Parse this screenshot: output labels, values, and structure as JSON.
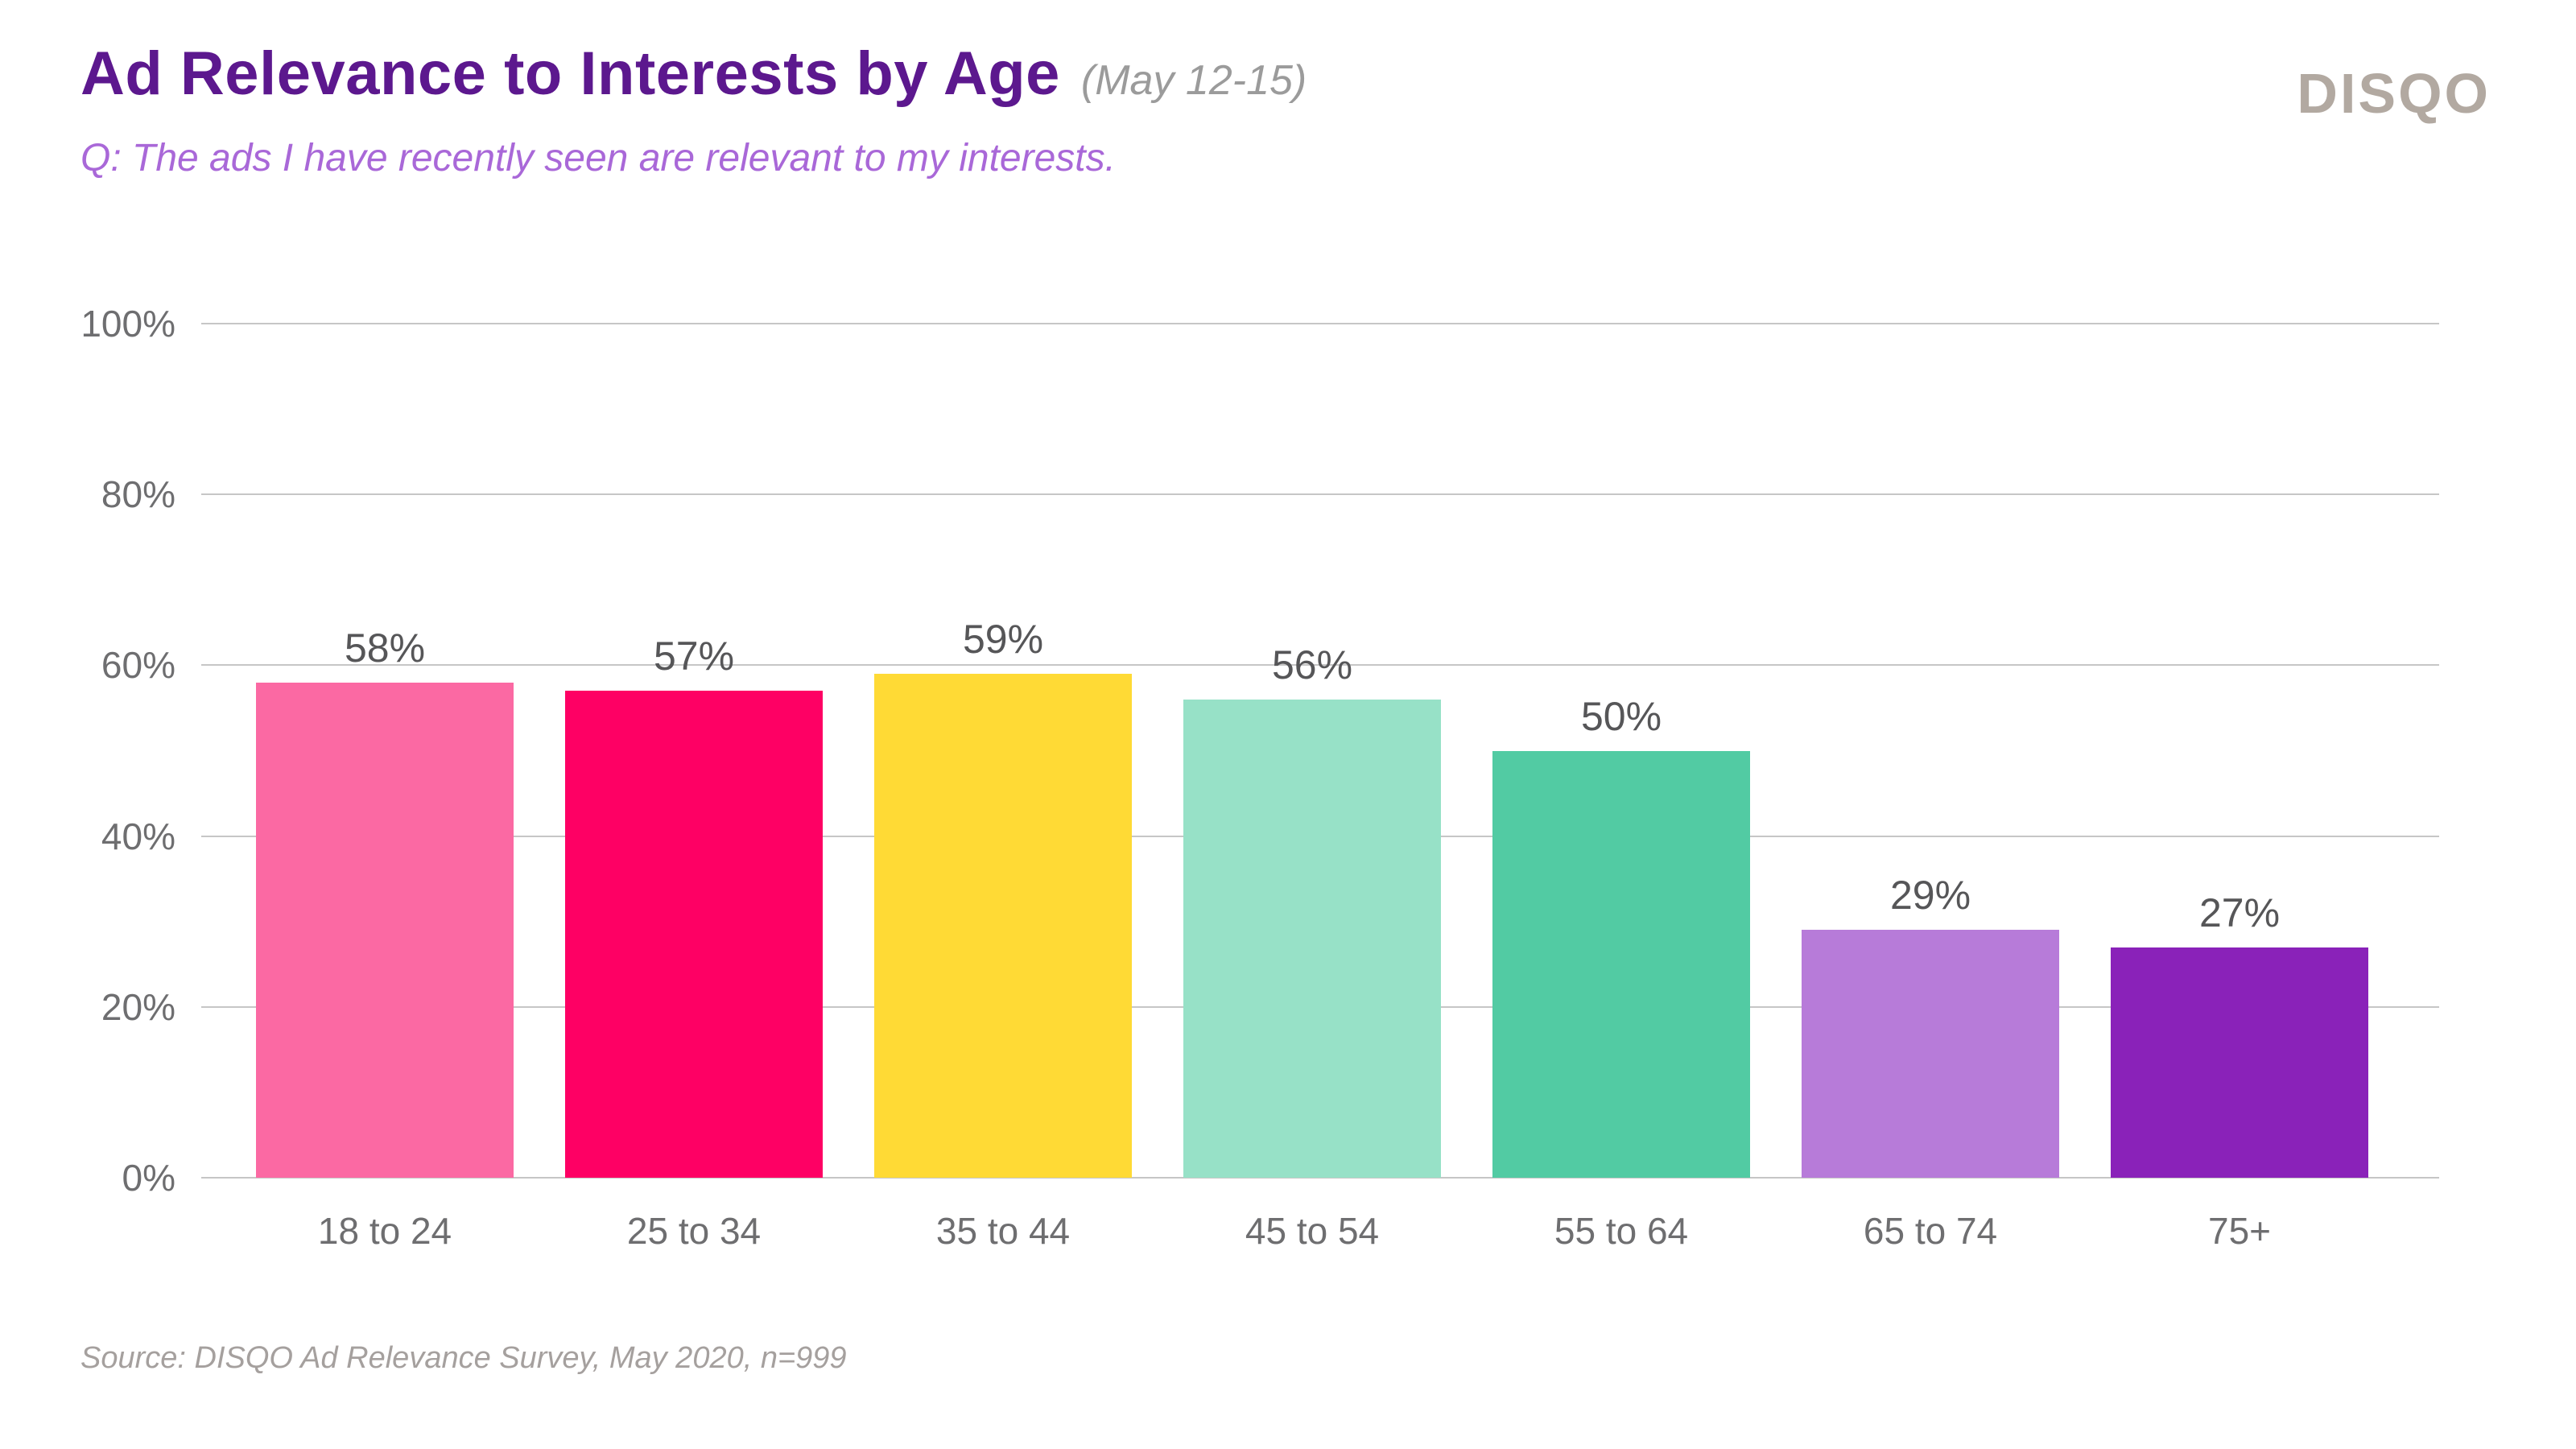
{
  "header": {
    "title": "Ad Relevance to Interests by Age",
    "period": "(May 12-15)",
    "subtitle": "Q: The ads I have recently seen are relevant to my interests."
  },
  "logo": {
    "text": "DISQO"
  },
  "source": "Source: DISQO Ad Relevance Survey, May 2020, n=999",
  "colors": {
    "title": "#5C188E",
    "period": "#9B9B9B",
    "subtitle": "#A968D8",
    "logo": "#B2A9A1",
    "gridline": "#C6C6C6",
    "axis_label": "#6E6E70",
    "value_label": "#565658",
    "source": "#A5A09E",
    "bars": [
      "#FB69A3",
      "#FE0064",
      "#FFDA35",
      "#97E1C7",
      "#52CBA3",
      "#B77BD9",
      "#8A22B9"
    ]
  },
  "chart_data": {
    "type": "bar",
    "title": "Ad Relevance to Interests by Age (May 12-15)",
    "subtitle": "Q: The ads I have recently seen are relevant to my interests.",
    "categories": [
      "18 to 24",
      "25 to 34",
      "35 to 44",
      "45 to 54",
      "55 to 64",
      "65 to 74",
      "75+"
    ],
    "values": [
      58,
      57,
      59,
      56,
      50,
      29,
      27
    ],
    "value_labels": [
      "58%",
      "57%",
      "59%",
      "56%",
      "50%",
      "29%",
      "27%"
    ],
    "xlabel": "",
    "ylabel": "",
    "ylim": [
      0,
      100
    ],
    "y_ticks": [
      {
        "label": "100%",
        "value": 100
      },
      {
        "label": "80%",
        "value": 80
      },
      {
        "label": "60%",
        "value": 60
      },
      {
        "label": "40%",
        "value": 40
      },
      {
        "label": "20%",
        "value": 20
      },
      {
        "label": "0%",
        "value": 0
      }
    ],
    "grid": "horizontal",
    "legend": "none"
  }
}
